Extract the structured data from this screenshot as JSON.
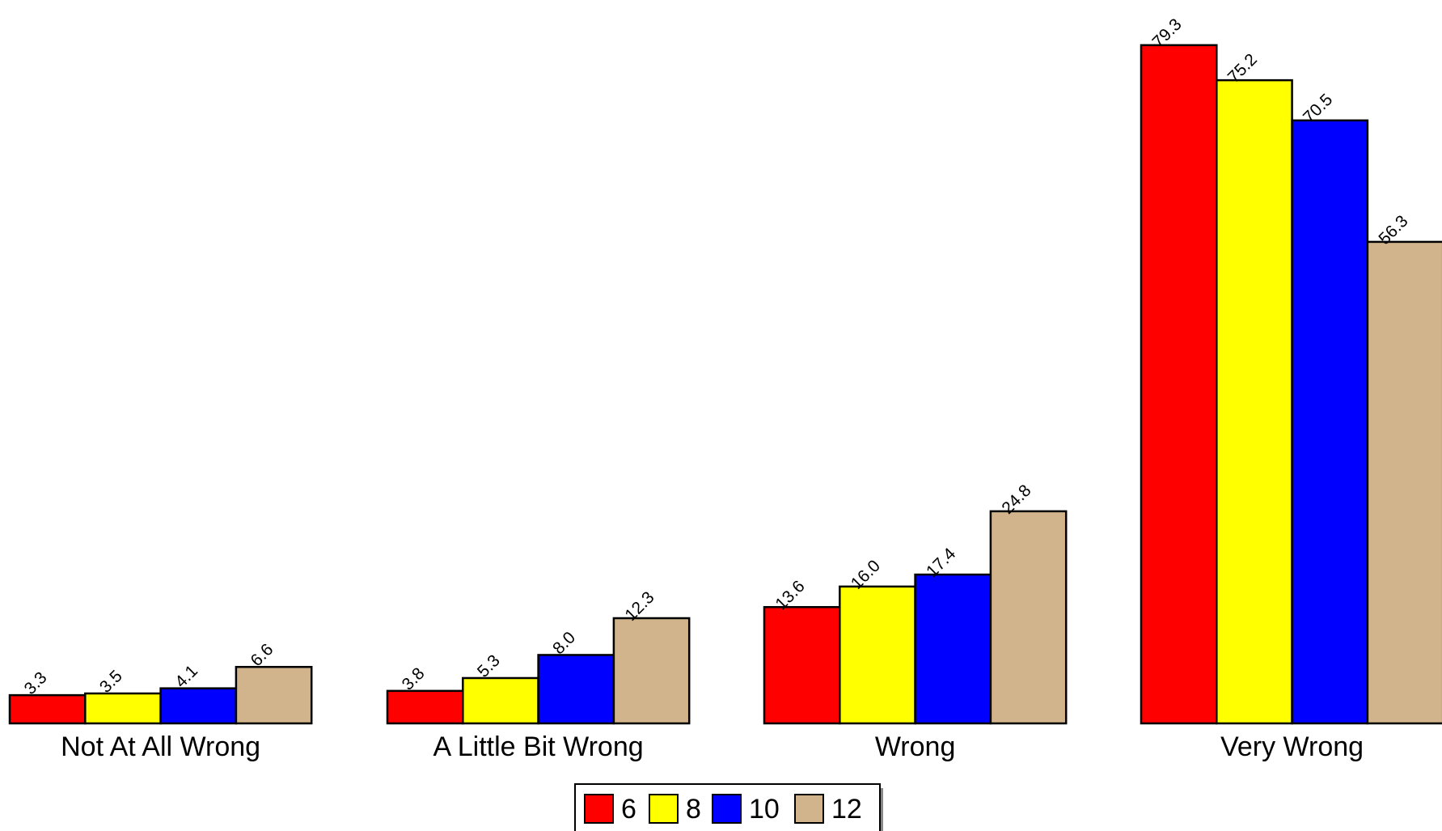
{
  "chart_data": {
    "type": "bar",
    "categories": [
      "Not At All Wrong",
      "A Little Bit Wrong",
      "Wrong",
      "Very Wrong"
    ],
    "series": [
      {
        "name": "6",
        "color": "#ff0000",
        "values": [
          3.3,
          3.8,
          13.6,
          79.3
        ],
        "labels": [
          "3.3",
          "3.8",
          "13.6",
          "79.3"
        ]
      },
      {
        "name": "8",
        "color": "#ffff00",
        "values": [
          3.5,
          5.3,
          16.0,
          75.2
        ],
        "labels": [
          "3.5",
          "5.3",
          "16.0",
          "75.2"
        ]
      },
      {
        "name": "10",
        "color": "#0000ff",
        "values": [
          4.1,
          8.0,
          17.4,
          70.5
        ],
        "labels": [
          "4.1",
          "8.0",
          "17.4",
          "70.5"
        ]
      },
      {
        "name": "12",
        "color": "#d2b48c",
        "values": [
          6.6,
          12.3,
          24.8,
          56.3
        ],
        "labels": [
          "6.6",
          "12.3",
          "24.8",
          "56.3"
        ]
      }
    ],
    "ylim": [
      0,
      80
    ],
    "grid": false,
    "legend_position": "bottom-center",
    "data_labels": "rotated"
  }
}
